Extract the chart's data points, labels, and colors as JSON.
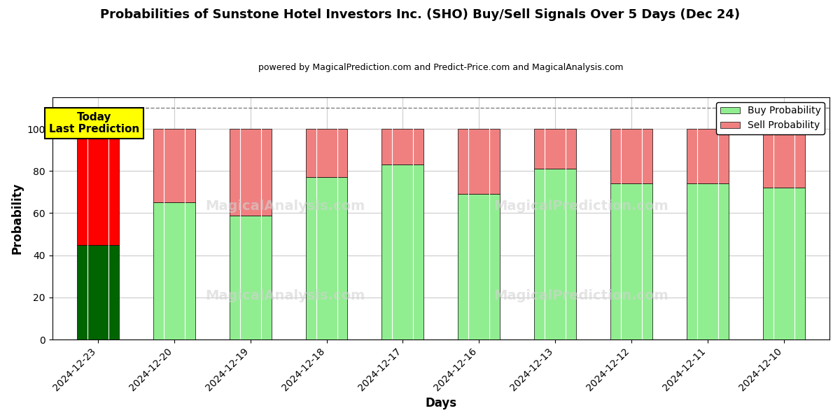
{
  "title": "Probabilities of Sunstone Hotel Investors Inc. (SHO) Buy/Sell Signals Over 5 Days (Dec 24)",
  "subtitle": "powered by MagicalPrediction.com and Predict-Price.com and MagicalAnalysis.com",
  "xlabel": "Days",
  "ylabel": "Probability",
  "categories": [
    "2024-12-23",
    "2024-12-20",
    "2024-12-19",
    "2024-12-18",
    "2024-12-17",
    "2024-12-16",
    "2024-12-13",
    "2024-12-12",
    "2024-12-11",
    "2024-12-10"
  ],
  "buy_values": [
    45,
    65,
    59,
    77,
    83,
    69,
    81,
    74,
    74,
    72
  ],
  "sell_values": [
    55,
    35,
    41,
    23,
    17,
    31,
    19,
    26,
    26,
    28
  ],
  "buy_colors": [
    "#006400",
    "#90EE90",
    "#90EE90",
    "#90EE90",
    "#90EE90",
    "#90EE90",
    "#90EE90",
    "#90EE90",
    "#90EE90",
    "#90EE90"
  ],
  "sell_colors": [
    "#FF0000",
    "#F08080",
    "#F08080",
    "#F08080",
    "#F08080",
    "#F08080",
    "#F08080",
    "#F08080",
    "#F08080",
    "#F08080"
  ],
  "legend_buy_color": "#90EE90",
  "legend_sell_color": "#F08080",
  "today_box_color": "#FFFF00",
  "today_label": "Today\nLast Prediction",
  "ylim": [
    0,
    115
  ],
  "dashed_line_y": 110,
  "background_color": "#ffffff",
  "grid_color": "#cccccc",
  "bar_width": 0.55
}
